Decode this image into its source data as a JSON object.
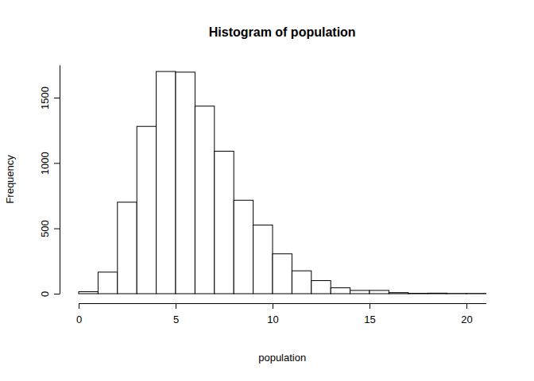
{
  "chart_data": {
    "type": "histogram",
    "title": "Histogram of population",
    "x_label": "population",
    "y_label": "Frequency",
    "bins": [
      0,
      1,
      2,
      3,
      4,
      5,
      6,
      7,
      8,
      9,
      10,
      11,
      12,
      13,
      14,
      15,
      16,
      17,
      18,
      19,
      20,
      21
    ],
    "values": [
      15,
      165,
      700,
      1280,
      1700,
      1695,
      1435,
      1090,
      715,
      525,
      305,
      175,
      100,
      45,
      25,
      25,
      8,
      3,
      4,
      2,
      2
    ],
    "color": "#ffffff",
    "xlim": [
      0,
      21
    ],
    "xticks": [
      0,
      5,
      10,
      15,
      20
    ],
    "ylim": [
      0,
      1750
    ],
    "yticks": [
      0,
      500,
      1000,
      1500
    ],
    "grid": false
  }
}
